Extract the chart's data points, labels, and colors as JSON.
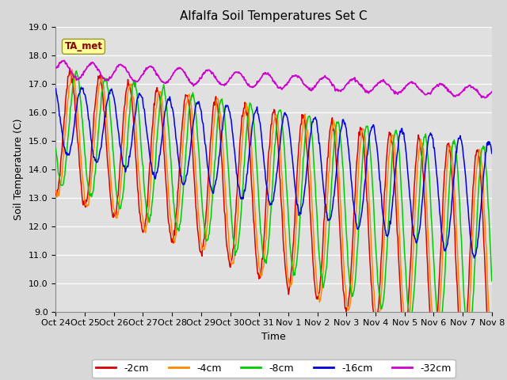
{
  "title": "Alfalfa Soil Temperatures Set C",
  "xlabel": "Time",
  "ylabel": "Soil Temperature (C)",
  "ylim": [
    9.0,
    19.0
  ],
  "yticks": [
    9.0,
    10.0,
    11.0,
    12.0,
    13.0,
    14.0,
    15.0,
    16.0,
    17.0,
    18.0,
    19.0
  ],
  "xtick_labels": [
    "Oct 24",
    "Oct 25",
    "Oct 26",
    "Oct 27",
    "Oct 28",
    "Oct 29",
    "Oct 30",
    "Oct 31",
    "Nov 1",
    "Nov 2",
    "Nov 3",
    "Nov 4",
    "Nov 5",
    "Nov 6",
    "Nov 7",
    "Nov 8"
  ],
  "colors": {
    "-2cm": "#dd0000",
    "-4cm": "#ff8800",
    "-8cm": "#00cc00",
    "-16cm": "#0000dd",
    "-32cm": "#cc00cc"
  },
  "legend_labels": [
    "-2cm",
    "-4cm",
    "-8cm",
    "-16cm",
    "-32cm"
  ],
  "background_color": "#e0e0e0",
  "fig_background": "#d8d8d8",
  "ta_met_box_color": "#ffff99",
  "ta_met_text_color": "#880000",
  "title_fontsize": 11,
  "axis_fontsize": 9,
  "tick_fontsize": 8,
  "legend_fontsize": 9,
  "n_days": 15,
  "n_points": 720
}
